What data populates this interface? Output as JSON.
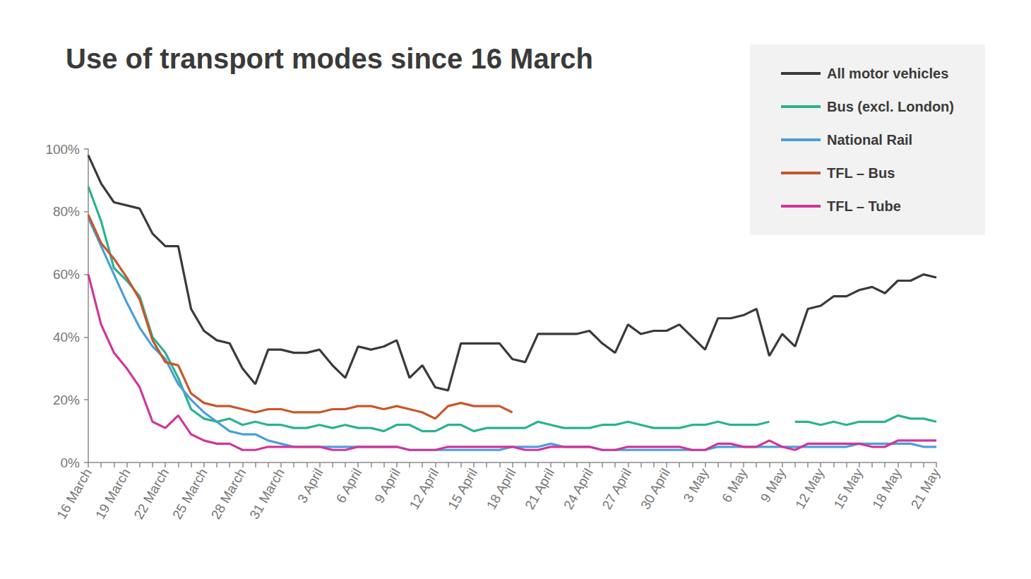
{
  "chart_data": {
    "type": "line",
    "title": "Use of transport modes since 16 March",
    "categories": [
      "16 March",
      null,
      null,
      "19 March",
      null,
      null,
      "22 March",
      null,
      null,
      "25 March",
      null,
      null,
      "28 March",
      null,
      null,
      "31 March",
      null,
      null,
      "3 April",
      null,
      null,
      "6 April",
      null,
      null,
      "9 April",
      null,
      null,
      "12 April",
      null,
      null,
      "15 April",
      null,
      null,
      "18 April",
      null,
      null,
      "21 April",
      null,
      null,
      "24 April",
      null,
      null,
      "27 April",
      null,
      null,
      "30 April",
      null,
      null,
      "3 May",
      null,
      null,
      "6 May",
      null,
      null,
      "9 May",
      null,
      null,
      "12 May",
      null,
      null,
      "15 May",
      null,
      null,
      "18 May",
      null,
      null,
      "21 May"
    ],
    "series": [
      {
        "name": "All motor vehicles",
        "color": "#3a3a3a",
        "values": [
          98,
          89,
          83,
          82,
          81,
          73,
          69,
          69,
          49,
          42,
          39,
          38,
          30,
          25,
          36,
          36,
          35,
          35,
          36,
          31,
          27,
          37,
          36,
          37,
          39,
          27,
          31,
          24,
          23,
          38,
          38,
          38,
          38,
          33,
          32,
          41,
          41,
          41,
          41,
          42,
          38,
          35,
          44,
          41,
          42,
          42,
          44,
          40,
          36,
          46,
          46,
          47,
          49,
          34,
          41,
          37,
          49,
          50,
          53,
          53,
          55,
          56,
          54,
          58,
          58,
          60,
          59
        ]
      },
      {
        "name": "Bus (excl. London)",
        "color": "#2ab38e",
        "values": [
          88,
          77,
          62,
          58,
          53,
          40,
          35,
          27,
          17,
          14,
          13,
          14,
          12,
          13,
          12,
          12,
          11,
          11,
          12,
          11,
          12,
          11,
          11,
          10,
          12,
          12,
          10,
          10,
          12,
          12,
          10,
          11,
          11,
          11,
          11,
          13,
          12,
          11,
          11,
          11,
          12,
          12,
          13,
          12,
          11,
          11,
          11,
          12,
          12,
          13,
          12,
          12,
          12,
          13,
          null,
          13,
          13,
          12,
          13,
          12,
          13,
          13,
          13,
          15,
          14,
          14,
          13
        ]
      },
      {
        "name": "National Rail",
        "color": "#4a9fdc",
        "values": [
          78,
          69,
          60,
          51,
          43,
          37,
          33,
          25,
          20,
          16,
          13,
          10,
          9,
          9,
          7,
          6,
          5,
          5,
          5,
          5,
          5,
          5,
          5,
          5,
          5,
          4,
          4,
          4,
          4,
          4,
          4,
          4,
          4,
          5,
          5,
          5,
          6,
          5,
          5,
          5,
          4,
          4,
          4,
          4,
          4,
          4,
          4,
          4,
          4,
          5,
          5,
          5,
          5,
          5,
          5,
          5,
          5,
          5,
          5,
          5,
          6,
          6,
          6,
          6,
          6,
          5,
          5
        ]
      },
      {
        "name": "TFL – Bus",
        "color": "#c9562a",
        "values": [
          79,
          70,
          65,
          59,
          52,
          39,
          32,
          31,
          22,
          19,
          18,
          18,
          17,
          16,
          17,
          17,
          16,
          16,
          16,
          17,
          17,
          18,
          18,
          17,
          18,
          17,
          16,
          14,
          18,
          19,
          18,
          18,
          18,
          16,
          null,
          null,
          null,
          null,
          null,
          null,
          null,
          null,
          null,
          null,
          null,
          null,
          null,
          null,
          null,
          null,
          null,
          null,
          null,
          null,
          null,
          null,
          null,
          null,
          null,
          null,
          null,
          null,
          null,
          null,
          null,
          null,
          null
        ]
      },
      {
        "name": "TFL – Tube",
        "color": "#d1359a",
        "values": [
          60,
          44,
          35,
          30,
          24,
          13,
          11,
          15,
          9,
          7,
          6,
          6,
          4,
          4,
          5,
          5,
          5,
          5,
          5,
          4,
          4,
          5,
          5,
          5,
          5,
          4,
          4,
          4,
          5,
          5,
          5,
          5,
          5,
          5,
          4,
          4,
          5,
          5,
          5,
          5,
          4,
          4,
          5,
          5,
          5,
          5,
          5,
          4,
          4,
          6,
          6,
          5,
          5,
          7,
          5,
          4,
          6,
          6,
          6,
          6,
          6,
          5,
          5,
          7,
          7,
          7,
          7
        ]
      }
    ],
    "ylim": [
      0,
      100
    ],
    "yticks": [
      {
        "value": 0,
        "label": "0%"
      },
      {
        "value": 20,
        "label": "20%"
      },
      {
        "value": 40,
        "label": "40%"
      },
      {
        "value": 60,
        "label": "60%"
      },
      {
        "value": 80,
        "label": "80%"
      },
      {
        "value": 100,
        "label": "100%"
      }
    ],
    "grid": false,
    "legend": "top-right"
  }
}
